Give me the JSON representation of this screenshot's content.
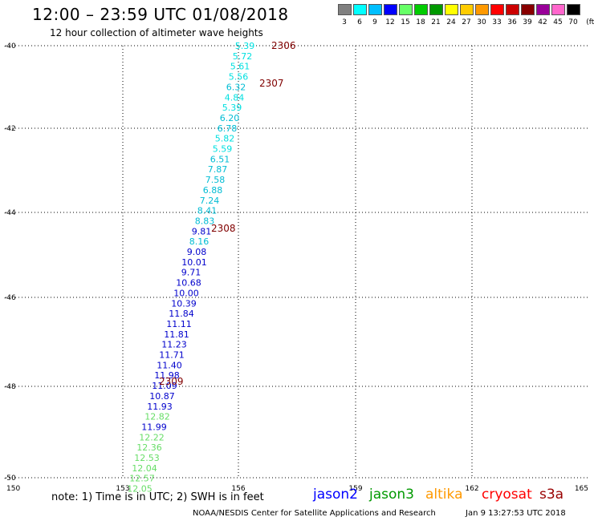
{
  "header": {
    "title": "12:00 – 23:59 UTC 01/08/2018",
    "subtitle": "12 hour collection of altimeter wave heights"
  },
  "legend": {
    "colors": [
      "#808080",
      "#00ffff",
      "#00bfff",
      "#0000ff",
      "#66ff66",
      "#00cc00",
      "#009900",
      "#ffff00",
      "#ffcc00",
      "#ff9900",
      "#ff0000",
      "#cc0000",
      "#880000",
      "#990099",
      "#ff66cc",
      "#000000"
    ],
    "labels": [
      "3",
      "6",
      "9",
      "12",
      "15",
      "18",
      "21",
      "24",
      "27",
      "30",
      "33",
      "36",
      "39",
      "42",
      "45",
      "70",
      "(ft)"
    ]
  },
  "map": {
    "lat_ticks": [
      "-40",
      "-42",
      "-44",
      "-46",
      "-48",
      "-50"
    ],
    "lon_ticks": [
      "150",
      "153",
      "156",
      "159",
      "162",
      "165"
    ],
    "pass_labels": [
      "2306",
      "2307",
      "2308",
      "2309"
    ],
    "readings": [
      {
        "v": "5.39",
        "c": "#00e0e0"
      },
      {
        "v": "5.72",
        "c": "#00e0e0"
      },
      {
        "v": "5.61",
        "c": "#00e0e0"
      },
      {
        "v": "5.56",
        "c": "#00e0e0"
      },
      {
        "v": "6.32",
        "c": "#00bcd4"
      },
      {
        "v": "4.84",
        "c": "#00e0e0"
      },
      {
        "v": "5.39",
        "c": "#00e0e0"
      },
      {
        "v": "6.20",
        "c": "#00bcd4"
      },
      {
        "v": "6.78",
        "c": "#00bcd4"
      },
      {
        "v": "5.82",
        "c": "#00e0e0"
      },
      {
        "v": "5.59",
        "c": "#00e0e0"
      },
      {
        "v": "6.51",
        "c": "#00bcd4"
      },
      {
        "v": "7.87",
        "c": "#00bcd4"
      },
      {
        "v": "7.58",
        "c": "#00bcd4"
      },
      {
        "v": "6.88",
        "c": "#00bcd4"
      },
      {
        "v": "7.24",
        "c": "#00bcd4"
      },
      {
        "v": "8.41",
        "c": "#00bcd4"
      },
      {
        "v": "8.83",
        "c": "#00bcd4"
      },
      {
        "v": "9.81",
        "c": "#0000cc"
      },
      {
        "v": "8.16",
        "c": "#00bcd4"
      },
      {
        "v": "9.08",
        "c": "#0000cc"
      },
      {
        "v": "10.01",
        "c": "#0000cc"
      },
      {
        "v": "9.71",
        "c": "#0000cc"
      },
      {
        "v": "10.68",
        "c": "#0000cc"
      },
      {
        "v": "10.00",
        "c": "#0000cc"
      },
      {
        "v": "10.39",
        "c": "#0000cc"
      },
      {
        "v": "11.84",
        "c": "#0000cc"
      },
      {
        "v": "11.11",
        "c": "#0000cc"
      },
      {
        "v": "11.81",
        "c": "#0000cc"
      },
      {
        "v": "11.23",
        "c": "#0000cc"
      },
      {
        "v": "11.71",
        "c": "#0000cc"
      },
      {
        "v": "11.40",
        "c": "#0000cc"
      },
      {
        "v": "11.98",
        "c": "#0000cc"
      },
      {
        "v": "11.09",
        "c": "#0000cc"
      },
      {
        "v": "10.87",
        "c": "#0000cc"
      },
      {
        "v": "11.93",
        "c": "#0000cc"
      },
      {
        "v": "12.82",
        "c": "#66dd66"
      },
      {
        "v": "11.99",
        "c": "#0000cc"
      },
      {
        "v": "12.22",
        "c": "#66dd66"
      },
      {
        "v": "12.36",
        "c": "#66dd66"
      },
      {
        "v": "12.53",
        "c": "#66dd66"
      },
      {
        "v": "12.04",
        "c": "#66dd66"
      },
      {
        "v": "12.57",
        "c": "#66dd66"
      },
      {
        "v": "12.05",
        "c": "#66dd66"
      }
    ]
  },
  "footer": {
    "note": "note: 1) Time is in UTC; 2) SWH is in feet",
    "satellites": [
      {
        "name": "jason2",
        "color": "#0000ff"
      },
      {
        "name": "jason3",
        "color": "#009900"
      },
      {
        "name": "altika",
        "color": "#ff9900"
      },
      {
        "name": "cryosat",
        "color": "#ff0000"
      },
      {
        "name": "s3a",
        "color": "#990000"
      }
    ],
    "credit": "NOAA/NESDIS Center for Satellite Applications and Research",
    "timestamp": "Jan  9 13:27:53 UTC 2018"
  }
}
